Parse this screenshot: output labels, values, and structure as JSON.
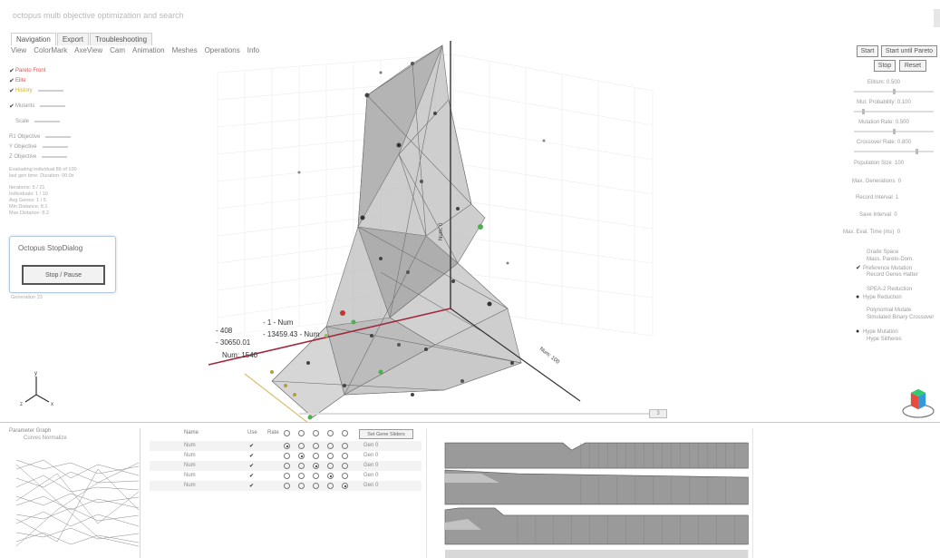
{
  "window": {
    "title": "octopus multi objective optimization and search"
  },
  "tabs": [
    "Navigation",
    "Export",
    "Troubleshooting"
  ],
  "menu": [
    "View",
    "ColorMark",
    "AxeView",
    "Cam",
    "Animation",
    "Meshes",
    "Operations",
    "Info"
  ],
  "left_panel": {
    "rows": [
      {
        "label": "Pareto Front",
        "checked": true,
        "tone": "red"
      },
      {
        "label": "Elite",
        "checked": true,
        "tone": "red"
      },
      {
        "label": "History",
        "checked": true,
        "tone": "yel"
      },
      {
        "label": "Mutants",
        "checked": true,
        "tone": "gray"
      },
      {
        "label": "Scale",
        "checked": false,
        "tone": "gray"
      },
      {
        "label": "R1 Objective",
        "checked": false,
        "tone": "gray"
      },
      {
        "label": "Y Objective",
        "checked": false,
        "tone": "gray"
      },
      {
        "label": "Z Objective",
        "checked": false,
        "tone": "gray"
      }
    ],
    "info_lines": [
      "Evaluating individual 86 of 100",
      "last gen time: Duration: 00:0x"
    ],
    "stats": [
      "Iterations: 5 / 21",
      "Individuals: 1 / 10",
      "Avg Genes: 1 / 5",
      "Min Distance: 8.1",
      "Max Distance: 8.2"
    ],
    "footer_label": "Generation 23"
  },
  "dialog": {
    "title": "Octopus StopDialog",
    "button": "Stop / Pause"
  },
  "viewport": {
    "axis_x_labels": [
      "- 408",
      "- 30650.01",
      "Num: 1540"
    ],
    "axis_z_labels": [
      "- 1 - Num",
      "- 13459.43 - Num"
    ],
    "axis_y_label": "Num: 0",
    "depth_label": "Num: 100",
    "gizmo_labels": [
      "y",
      "x",
      "z"
    ],
    "scroll_value": "3"
  },
  "right_panel": {
    "buttons": [
      "Start",
      "Start until Pareto",
      "Stop",
      "Reset"
    ],
    "sliders": [
      {
        "label": "Elitism: 0.500",
        "value": 0.5
      },
      {
        "label": "Mut. Probability: 0.100",
        "value": 0.1
      },
      {
        "label": "Mutation Rate: 0.500",
        "value": 0.5
      },
      {
        "label": "Crossover Rate: 0.800",
        "value": 0.8
      }
    ],
    "fields": [
      {
        "label": "Population Size",
        "value": "100"
      },
      {
        "label": "Max. Generations",
        "value": "0"
      },
      {
        "label": "Record Interval",
        "value": "1"
      },
      {
        "label": "Save Interval",
        "value": "0"
      },
      {
        "label": "Max. Eval. Time (ms)",
        "value": "0"
      }
    ],
    "options": [
      {
        "label": "Grade Space",
        "checked": false
      },
      {
        "label": "Mass. Pareto-Dom.",
        "checked": false
      },
      {
        "label": "Preference Mutation",
        "checked": true
      },
      {
        "label": "Record Genes Hatter",
        "checked": false
      },
      {
        "label": "SPEA-2 Reduction",
        "checked": false
      },
      {
        "label": "Hype Reduction",
        "checked": true
      },
      {
        "label": "Polynomial Mutate",
        "checked": false
      },
      {
        "label": "Simulated Binary Crossover",
        "checked": false
      },
      {
        "label": "Hype Mutation",
        "checked": true
      },
      {
        "label": "Hype Sillheres",
        "checked": false
      }
    ]
  },
  "bottom": {
    "graph_title": "Parameter Graph",
    "graph_subtitle": "Curves Normalize",
    "table_headers": {
      "name": "Name",
      "use": "Use",
      "ratio": "Rate",
      "set_button": "Set Gene Sliders"
    },
    "rows": [
      {
        "name": "Num",
        "use": true,
        "selected": 0,
        "value": "Gen 0"
      },
      {
        "name": "Num",
        "use": true,
        "selected": 1,
        "value": "Gen 0"
      },
      {
        "name": "Num",
        "use": true,
        "selected": 2,
        "value": "Gen 0"
      },
      {
        "name": "Num",
        "use": true,
        "selected": 3,
        "value": "Gen 0"
      },
      {
        "name": "Num",
        "use": true,
        "selected": 4,
        "value": "Gen 0"
      }
    ]
  },
  "colors": {
    "accent": "#c0392b",
    "mesh": "#8c8c8c",
    "green_point": "#4caf50",
    "dialog_border": "#b4c8d8"
  }
}
